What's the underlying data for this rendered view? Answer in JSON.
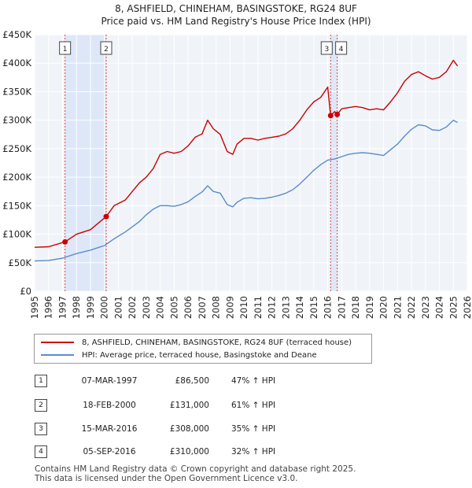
{
  "header": {
    "title": "8, ASHFIELD, CHINEHAM, BASINGSTOKE, RG24 8UF",
    "subtitle": "Price paid vs. HM Land Registry's House Price Index (HPI)"
  },
  "chart_data": {
    "type": "line",
    "title": "8, ASHFIELD, CHINEHAM, BASINGSTOKE, RG24 8UF",
    "subtitle": "Price paid vs. HM Land Registry's House Price Index (HPI)",
    "xlim": [
      1995,
      2026
    ],
    "ylim": [
      0,
      450000
    ],
    "y_ticks": [
      0,
      50000,
      100000,
      150000,
      200000,
      250000,
      300000,
      350000,
      400000,
      450000
    ],
    "y_tick_labels": [
      "£0",
      "£50K",
      "£100K",
      "£150K",
      "£200K",
      "£250K",
      "£300K",
      "£350K",
      "£400K",
      "£450K"
    ],
    "x_ticks": [
      1995,
      1996,
      1997,
      1998,
      1999,
      2000,
      2001,
      2002,
      2003,
      2004,
      2005,
      2006,
      2007,
      2008,
      2009,
      2010,
      2011,
      2012,
      2013,
      2014,
      2015,
      2016,
      2017,
      2018,
      2019,
      2020,
      2021,
      2022,
      2023,
      2024,
      2025,
      2026
    ],
    "grid": true,
    "series": [
      {
        "name": "8, ASHFIELD, CHINEHAM, BASINGSTOKE, RG24 8UF (terraced house)",
        "color": "#cc0000",
        "x": [
          1995.0,
          1996.0,
          1997.18,
          1998.0,
          1999.0,
          2000.13,
          2000.7,
          2001.5,
          2002.5,
          2003.0,
          2003.5,
          2004.0,
          2004.5,
          2005.0,
          2005.5,
          2006.0,
          2006.5,
          2007.0,
          2007.4,
          2007.8,
          2008.3,
          2008.8,
          2009.2,
          2009.5,
          2010.0,
          2010.5,
          2011.0,
          2011.5,
          2012.0,
          2012.5,
          2013.0,
          2013.5,
          2014.0,
          2014.5,
          2015.0,
          2015.5,
          2016.0,
          2016.05,
          2016.21,
          2016.5,
          2016.68,
          2017.0,
          2017.5,
          2018.0,
          2018.5,
          2019.0,
          2019.5,
          2020.0,
          2020.5,
          2021.0,
          2021.5,
          2022.0,
          2022.5,
          2023.0,
          2023.5,
          2024.0,
          2024.5,
          2025.0,
          2025.3
        ],
        "y": [
          77000,
          78000,
          86500,
          100000,
          108000,
          131000,
          150000,
          160000,
          190000,
          200000,
          215000,
          240000,
          245000,
          242000,
          245000,
          255000,
          270000,
          276000,
          300000,
          285000,
          275000,
          245000,
          240000,
          258000,
          268000,
          268000,
          265000,
          268000,
          270000,
          272000,
          276000,
          285000,
          300000,
          318000,
          332000,
          340000,
          358000,
          345000,
          308000,
          315000,
          310000,
          320000,
          322000,
          324000,
          322000,
          318000,
          320000,
          318000,
          332000,
          348000,
          368000,
          380000,
          385000,
          378000,
          372000,
          375000,
          385000,
          405000,
          395000
        ]
      },
      {
        "name": "HPI: Average price, terraced house, Basingstoke and Deane",
        "color": "#5b8ccc",
        "x": [
          1995.0,
          1996.0,
          1997.0,
          1998.0,
          1999.0,
          2000.0,
          2000.7,
          2001.5,
          2002.5,
          2003.0,
          2003.5,
          2004.0,
          2004.5,
          2005.0,
          2005.5,
          2006.0,
          2006.5,
          2007.0,
          2007.4,
          2007.8,
          2008.3,
          2008.8,
          2009.2,
          2009.5,
          2010.0,
          2010.5,
          2011.0,
          2011.5,
          2012.0,
          2012.5,
          2013.0,
          2013.5,
          2014.0,
          2014.5,
          2015.0,
          2015.5,
          2016.0,
          2016.5,
          2017.0,
          2017.5,
          2018.0,
          2018.5,
          2019.0,
          2019.5,
          2020.0,
          2020.5,
          2021.0,
          2021.5,
          2022.0,
          2022.5,
          2023.0,
          2023.5,
          2024.0,
          2024.5,
          2025.0,
          2025.3
        ],
        "y": [
          53000,
          54000,
          58000,
          66000,
          72000,
          80000,
          92000,
          104000,
          122000,
          134000,
          144000,
          150000,
          150000,
          149000,
          152000,
          157000,
          166000,
          174000,
          185000,
          175000,
          172000,
          152000,
          148000,
          156000,
          163000,
          164000,
          162000,
          163000,
          165000,
          168000,
          172000,
          178000,
          188000,
          200000,
          212000,
          222000,
          230000,
          232000,
          236000,
          240000,
          242000,
          243000,
          242000,
          240000,
          238000,
          248000,
          258000,
          272000,
          284000,
          292000,
          290000,
          283000,
          282000,
          288000,
          300000,
          296000
        ]
      }
    ],
    "markers": [
      {
        "id": "1",
        "x": 1997.18,
        "y": 86500
      },
      {
        "id": "2",
        "x": 2000.13,
        "y": 131000
      },
      {
        "id": "3",
        "x": 2016.21,
        "y": 308000
      },
      {
        "id": "4",
        "x": 2016.68,
        "y": 310000
      }
    ],
    "shaded_ranges": [
      [
        1997.18,
        2000.13
      ],
      [
        2016.21,
        2016.68
      ]
    ]
  },
  "legend": {
    "property_label": "8, ASHFIELD, CHINEHAM, BASINGSTOKE, RG24 8UF (terraced house)",
    "hpi_label": "HPI: Average price, terraced house, Basingstoke and Deane",
    "property_color": "#cc0000",
    "hpi_color": "#5b8ccc"
  },
  "transactions": [
    {
      "id": "1",
      "date": "07-MAR-1997",
      "price": "£86,500",
      "hpi": "47% ↑ HPI"
    },
    {
      "id": "2",
      "date": "18-FEB-2000",
      "price": "£131,000",
      "hpi": "61% ↑ HPI"
    },
    {
      "id": "3",
      "date": "15-MAR-2016",
      "price": "£308,000",
      "hpi": "35% ↑ HPI"
    },
    {
      "id": "4",
      "date": "05-SEP-2016",
      "price": "£310,000",
      "hpi": "32% ↑ HPI"
    }
  ],
  "footer": {
    "line1": "Contains HM Land Registry data © Crown copyright and database right 2025.",
    "line2": "This data is licensed under the Open Government Licence v3.0."
  }
}
